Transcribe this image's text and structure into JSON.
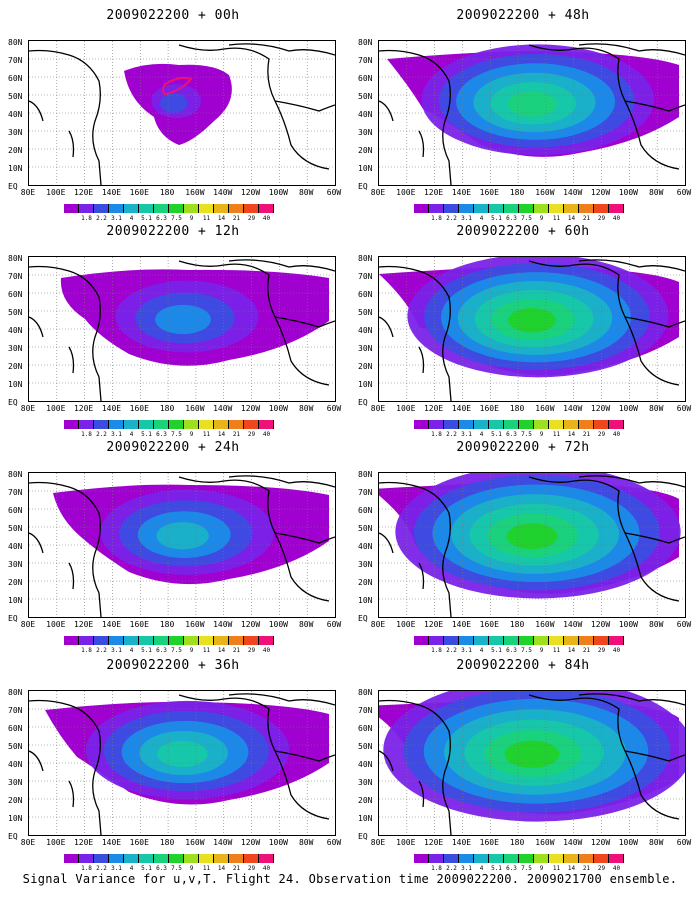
{
  "caption": "Signal Variance for u,v,T. Flight 24. Observation time 2009022200. 2009021700 ensemble.",
  "x_tick_labels": [
    "80E",
    "100E",
    "120E",
    "140E",
    "160E",
    "180",
    "160W",
    "140W",
    "120W",
    "100W",
    "80W",
    "60W"
  ],
  "y_tick_labels": [
    "80N",
    "70N",
    "60N",
    "50N",
    "40N",
    "30N",
    "20N",
    "10N",
    "EQ"
  ],
  "colorbar": {
    "labels": [
      "1.8",
      "2.2",
      "3.1",
      "4",
      "5.1",
      "6.3",
      "7.5",
      "9",
      "11",
      "14",
      "21",
      "29",
      "40"
    ],
    "colors": [
      "#a000d0",
      "#7a22e8",
      "#3b4de0",
      "#1a8ce8",
      "#1ab2c8",
      "#17c8a8",
      "#1ad27a",
      "#20d22a",
      "#9ee020",
      "#e8e020",
      "#e8b41a",
      "#ee7f1a",
      "#f0461e",
      "#f0107a"
    ]
  },
  "panels": [
    {
      "title": "2009022200 + 00h",
      "level": 0
    },
    {
      "title": "2009022200 + 48h",
      "level": 4
    },
    {
      "title": "2009022200 + 12h",
      "level": 1
    },
    {
      "title": "2009022200 + 60h",
      "level": 5
    },
    {
      "title": "2009022200 + 24h",
      "level": 2
    },
    {
      "title": "2009022200 + 72h",
      "level": 6
    },
    {
      "title": "2009022200 + 36h",
      "level": 3
    },
    {
      "title": "2009022200 + 84h",
      "level": 7
    }
  ]
}
